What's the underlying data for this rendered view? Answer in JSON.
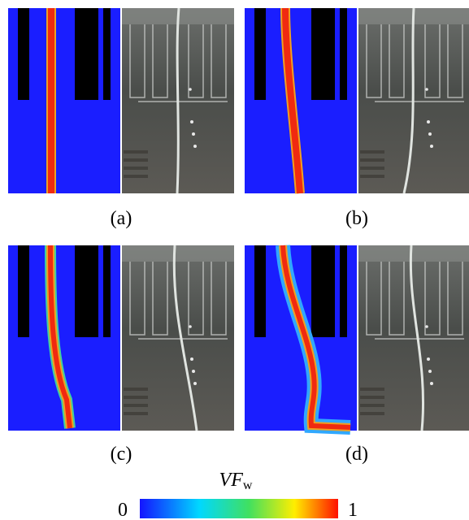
{
  "panels": [
    {
      "label": "(a)"
    },
    {
      "label": "(b)"
    },
    {
      "label": "(c)"
    },
    {
      "label": "(d)"
    }
  ],
  "colorbar": {
    "label": "VF",
    "label_sub": "w",
    "min": 0,
    "max": 1
  }
}
